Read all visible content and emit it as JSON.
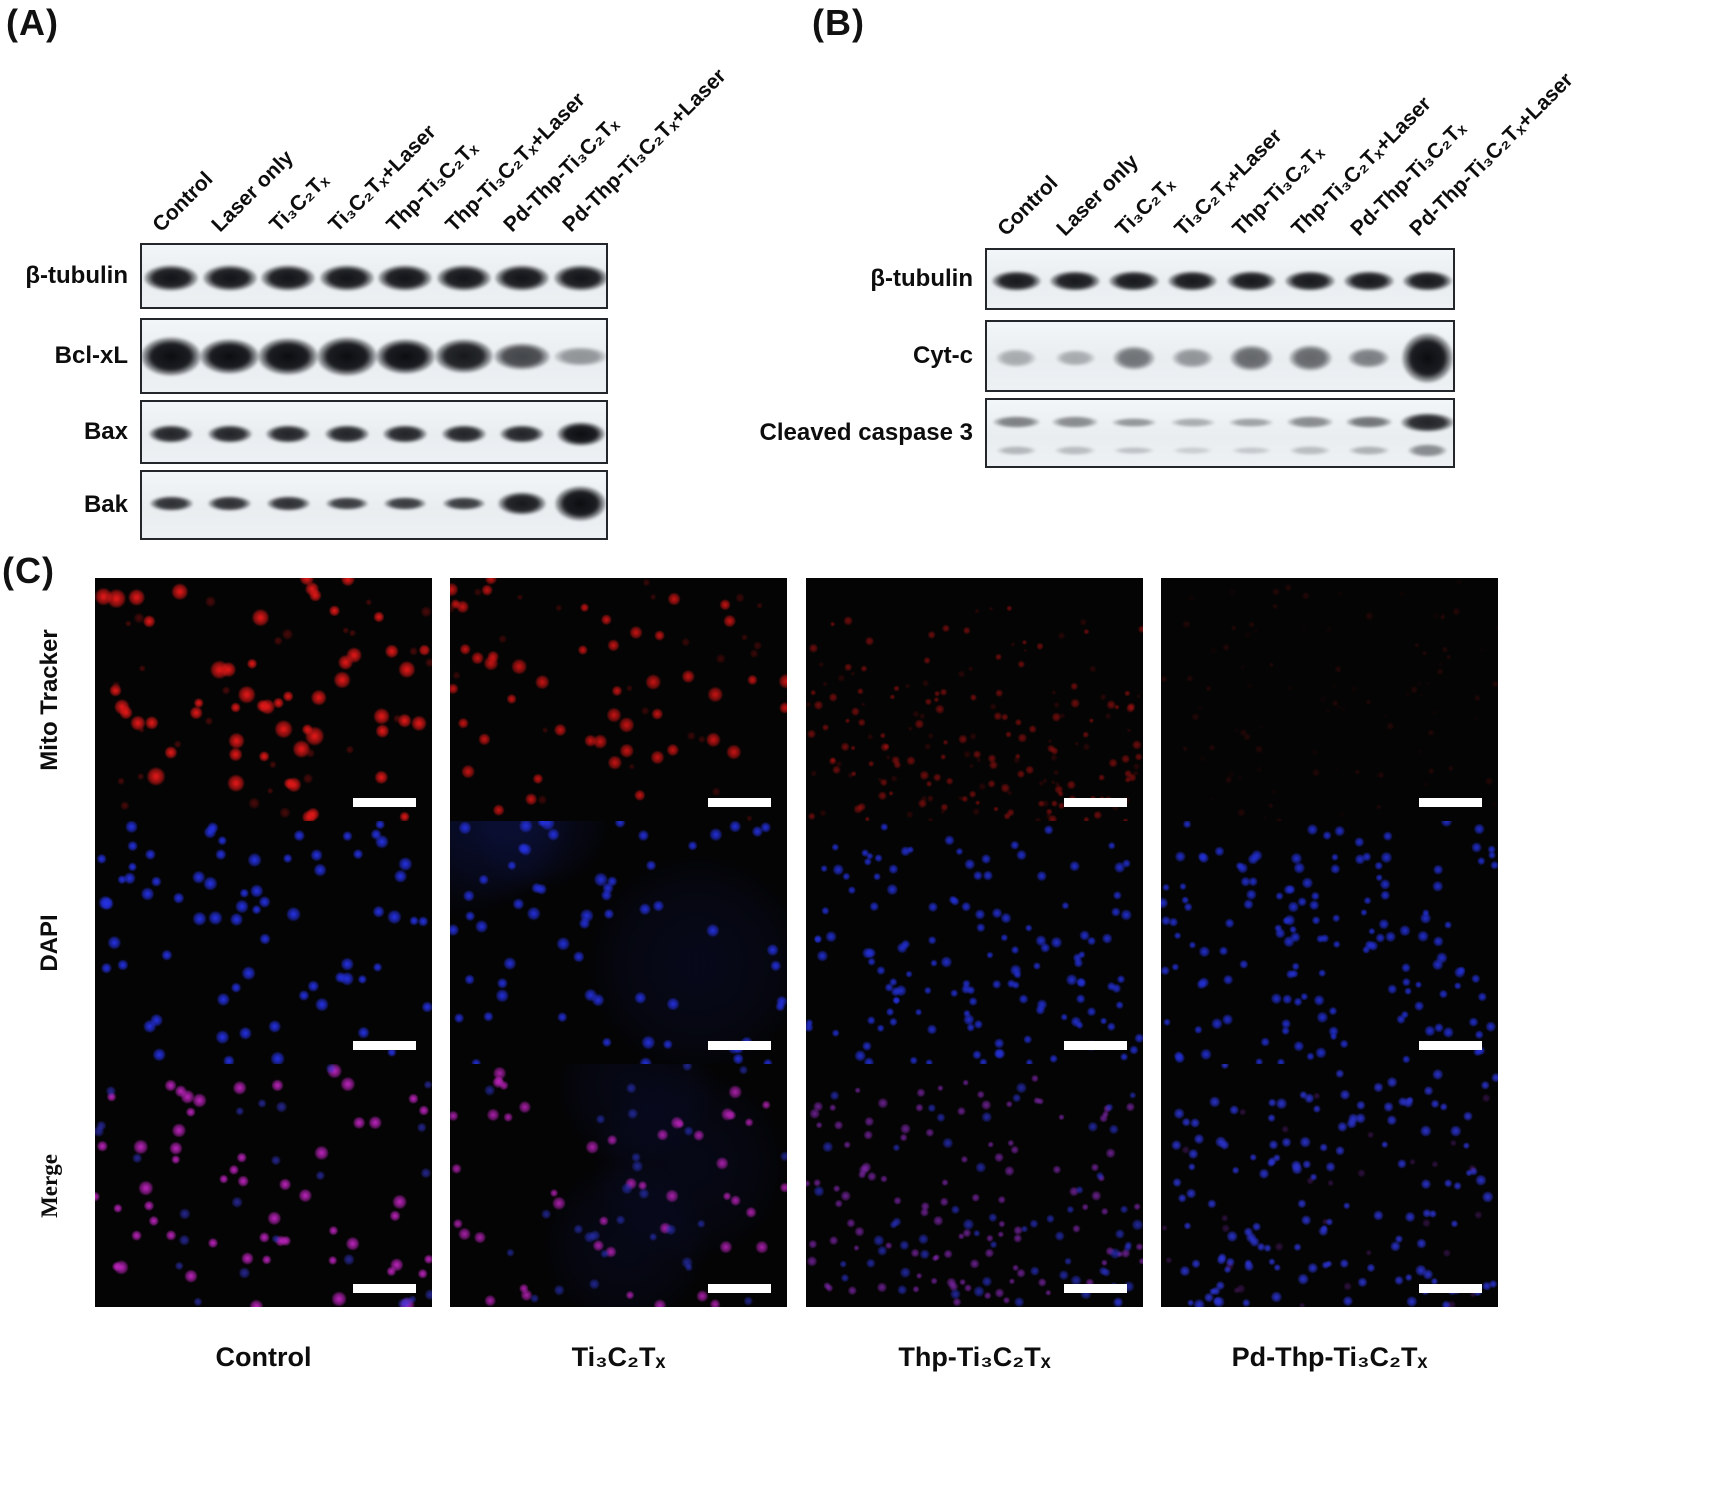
{
  "panel_a": {
    "label": "(A)",
    "lanes": [
      "Control",
      "Laser only",
      "Ti₃C₂Tₓ",
      "Ti₃C₂Tₓ+Laser",
      "Thp-Ti₃C₂Tₓ",
      "Thp-Ti₃C₂Tₓ+Laser",
      "Pd-Thp-Ti₃C₂Tₓ",
      "Pd-Thp-Ti₃C₂Tₓ+Laser"
    ],
    "rows": [
      {
        "label": "β-tubulin",
        "y": 0.5,
        "bands": [
          [
            0.97,
            1
          ],
          [
            0.97,
            1
          ],
          [
            0.97,
            1
          ],
          [
            0.97,
            1
          ],
          [
            0.97,
            1
          ],
          [
            0.97,
            1
          ],
          [
            0.97,
            1
          ],
          [
            0.97,
            1
          ]
        ]
      },
      {
        "label": "Bcl-xL",
        "y": 0.48,
        "bands": [
          [
            1,
            1.12
          ],
          [
            1,
            1.05
          ],
          [
            1,
            1.1
          ],
          [
            1,
            1.15
          ],
          [
            1,
            1.02
          ],
          [
            0.95,
            1
          ],
          [
            0.75,
            0.8
          ],
          [
            0.4,
            0.58
          ]
        ]
      },
      {
        "label": "Bax",
        "y": 0.5,
        "bands": [
          [
            0.9,
            1
          ],
          [
            0.9,
            1
          ],
          [
            0.9,
            1
          ],
          [
            0.9,
            1
          ],
          [
            0.9,
            1
          ],
          [
            0.9,
            1
          ],
          [
            0.9,
            1
          ],
          [
            1,
            1.35
          ]
        ]
      },
      {
        "label": "Bak",
        "y": 0.45,
        "bands": [
          [
            0.85,
            1
          ],
          [
            0.85,
            1
          ],
          [
            0.85,
            1
          ],
          [
            0.8,
            0.9
          ],
          [
            0.8,
            0.9
          ],
          [
            0.8,
            0.9
          ],
          [
            0.95,
            1.5
          ],
          [
            1,
            2.3
          ]
        ]
      }
    ]
  },
  "panel_b": {
    "label": "(B)",
    "lanes": [
      "Control",
      "Laser only",
      "Ti₃C₂Tₓ",
      "Ti₃C₂Tₓ+Laser",
      "Thp-Ti₃C₂Tₓ",
      "Thp-Ti₃C₂Tₓ+Laser",
      "Pd-Thp-Ti₃C₂Tₓ",
      "Pd-Thp-Ti₃C₂Tₓ+Laser"
    ],
    "rows": [
      {
        "label": "β-tubulin",
        "y": 0.5,
        "bands": [
          [
            0.95,
            1
          ],
          [
            0.95,
            1
          ],
          [
            0.95,
            1
          ],
          [
            0.95,
            1
          ],
          [
            0.95,
            1
          ],
          [
            0.95,
            1
          ],
          [
            0.95,
            1
          ],
          [
            0.95,
            1
          ]
        ]
      },
      {
        "label": "Cyt-c",
        "y": 0.5,
        "bands": [
          [
            0.3,
            0.7
          ],
          [
            0.3,
            0.6
          ],
          [
            0.55,
            0.9
          ],
          [
            0.4,
            0.8
          ],
          [
            0.6,
            1
          ],
          [
            0.6,
            1
          ],
          [
            0.5,
            0.8
          ],
          [
            1,
            1.9
          ]
        ]
      },
      {
        "label": "Cleaved caspase 3",
        "y": 0.32,
        "double": true,
        "bands": [
          [
            0.5,
            1
          ],
          [
            0.45,
            1
          ],
          [
            0.4,
            0.8
          ],
          [
            0.3,
            0.8
          ],
          [
            0.35,
            0.8
          ],
          [
            0.45,
            1
          ],
          [
            0.55,
            1
          ],
          [
            0.9,
            1.6
          ]
        ]
      }
    ]
  },
  "panel_c": {
    "label": "(C)",
    "row_labels": [
      "Mito Tracker",
      "DAPI",
      "Merge"
    ],
    "col_labels": [
      "Control",
      "Ti₃C₂Tₓ",
      "Thp-Ti₃C₂Tₓ",
      "Pd-Thp-Ti₃C₂Tₓ"
    ],
    "scalebar_color": "#ffffff",
    "cells": [
      [
        {
          "seed": 11,
          "layers": [
            {
              "color": "#e21818",
              "count": 55,
              "rmin": 5,
              "rmax": 10,
              "alpha": 0.95
            },
            {
              "color": "#8a1010",
              "count": 30,
              "rmin": 3,
              "rmax": 6,
              "alpha": 0.5
            }
          ]
        },
        {
          "seed": 22,
          "layers": [
            {
              "color": "#da1515",
              "count": 48,
              "rmin": 4.5,
              "rmax": 8.5,
              "alpha": 0.85
            },
            {
              "color": "#7a0d0d",
              "count": 24,
              "rmin": 3,
              "rmax": 5,
              "alpha": 0.45
            }
          ]
        },
        {
          "seed": 33,
          "layers": [
            {
              "color": "#c01313",
              "count": 120,
              "rmin": 2.5,
              "rmax": 5,
              "alpha": 0.55,
              "grav": 0.55
            },
            {
              "color": "#6d0b0b",
              "count": 70,
              "rmin": 2,
              "rmax": 4,
              "alpha": 0.35,
              "grav": 0.6
            }
          ]
        },
        {
          "seed": 44,
          "layers": [
            {
              "color": "#801010",
              "count": 45,
              "rmin": 2.5,
              "rmax": 4.5,
              "alpha": 0.25
            },
            {
              "color": "#4a0808",
              "count": 50,
              "rmin": 2,
              "rmax": 4,
              "alpha": 0.16
            }
          ]
        }
      ],
      [
        {
          "seed": 55,
          "layers": [
            {
              "color": "#2531e2",
              "count": 70,
              "rmin": 4.5,
              "rmax": 7.5,
              "alpha": 0.95
            }
          ]
        },
        {
          "seed": 66,
          "layers": [
            {
              "color": "#141f7a",
              "count": 4,
              "rmin": 70,
              "rmax": 120,
              "alpha": 0.18
            },
            {
              "color": "#2531e2",
              "count": 62,
              "rmin": 4.5,
              "rmax": 7.5,
              "alpha": 0.9
            }
          ]
        },
        {
          "seed": 77,
          "layers": [
            {
              "color": "#2330d6",
              "count": 135,
              "rmin": 3.5,
              "rmax": 6,
              "alpha": 0.9,
              "grav": 0.8
            }
          ]
        },
        {
          "seed": 88,
          "layers": [
            {
              "color": "#2330d6",
              "count": 145,
              "rmin": 3.5,
              "rmax": 6,
              "alpha": 0.9,
              "grav": 0.9
            }
          ]
        }
      ],
      [
        {
          "seed": 111,
          "layers": [
            {
              "color": "#c325c3",
              "count": 55,
              "rmin": 4.5,
              "rmax": 8,
              "alpha": 0.9
            },
            {
              "color": "#3a3ae2",
              "count": 25,
              "rmin": 4,
              "rmax": 6,
              "alpha": 0.6
            }
          ]
        },
        {
          "seed": 122,
          "layers": [
            {
              "color": "#141f7a",
              "count": 3,
              "rmin": 70,
              "rmax": 110,
              "alpha": 0.15
            },
            {
              "color": "#b822b8",
              "count": 46,
              "rmin": 4,
              "rmax": 7,
              "alpha": 0.85
            },
            {
              "color": "#3038d8",
              "count": 28,
              "rmin": 4,
              "rmax": 6,
              "alpha": 0.6
            }
          ]
        },
        {
          "seed": 133,
          "layers": [
            {
              "color": "#8c2abc",
              "count": 110,
              "rmin": 3,
              "rmax": 5.5,
              "alpha": 0.7,
              "grav": 0.7
            },
            {
              "color": "#2c34d4",
              "count": 60,
              "rmin": 3.5,
              "rmax": 6,
              "alpha": 0.7,
              "grav": 0.75
            }
          ]
        },
        {
          "seed": 144,
          "layers": [
            {
              "color": "#2c34d4",
              "count": 135,
              "rmin": 3.5,
              "rmax": 6,
              "alpha": 0.9,
              "grav": 0.9
            },
            {
              "color": "#7a28a8",
              "count": 30,
              "rmin": 3,
              "rmax": 5,
              "alpha": 0.35,
              "grav": 0.9
            }
          ]
        }
      ]
    ]
  }
}
